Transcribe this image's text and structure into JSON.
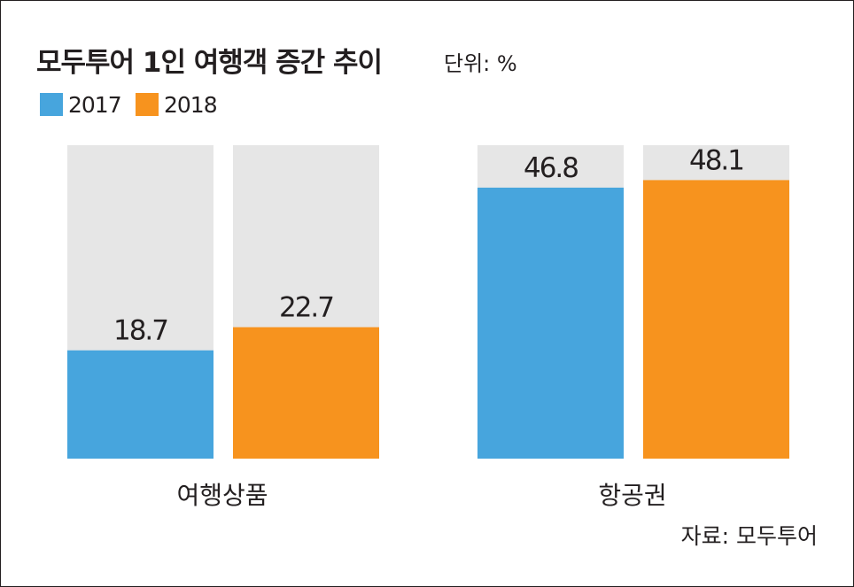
{
  "chart_data": {
    "type": "bar",
    "title": "모두투어 1인 여행객 증간 추이",
    "unit": "단위: %",
    "categories": [
      "여행상품",
      "항공권"
    ],
    "series": [
      {
        "name": "2017",
        "values": [
          18.7,
          46.8
        ]
      },
      {
        "name": "2018",
        "values": [
          22.7,
          48.1
        ]
      }
    ],
    "ylim": [
      0,
      50
    ],
    "source": "자료: 모두투어",
    "colors": {
      "2017": "#47a5dd",
      "2018": "#f7931e",
      "track": "#e6e6e6"
    }
  }
}
